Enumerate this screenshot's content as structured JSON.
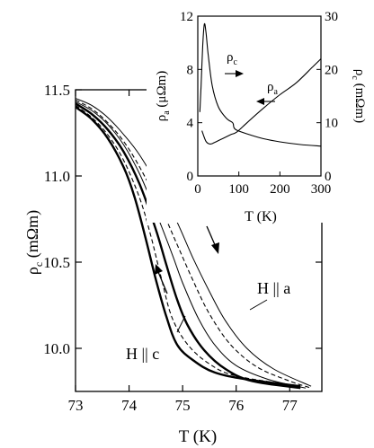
{
  "chart_data": [
    {
      "type": "line",
      "panel": "main",
      "xlabel": "T (K)",
      "ylabel": "ρc (mΩm)",
      "xlim": [
        73,
        77.6
      ],
      "ylim": [
        9.75,
        11.5
      ],
      "x_ticks": [
        "73",
        "74",
        "75",
        "76",
        "77"
      ],
      "y_ticks": [
        "10.0",
        "10.5",
        "11.0",
        "11.5"
      ],
      "annotations": [
        "H || a",
        "H || c"
      ],
      "arrows": [
        "cooling (down, right curves)",
        "warming (up, left curves)"
      ],
      "series": [
        {
          "style": "solid-thick",
          "points": [
            [
              73.0,
              11.4
            ],
            [
              73.3,
              11.33
            ],
            [
              73.6,
              11.22
            ],
            [
              73.9,
              11.05
            ],
            [
              74.1,
              10.88
            ],
            [
              74.3,
              10.65
            ],
            [
              74.5,
              10.4
            ],
            [
              74.7,
              10.18
            ],
            [
              74.9,
              10.02
            ],
            [
              75.2,
              9.93
            ],
            [
              75.6,
              9.86
            ],
            [
              76.2,
              9.82
            ],
            [
              77.2,
              9.78
            ]
          ]
        },
        {
          "style": "dashed",
          "points": [
            [
              73.0,
              11.41
            ],
            [
              73.3,
              11.34
            ],
            [
              73.6,
              11.24
            ],
            [
              73.9,
              11.09
            ],
            [
              74.2,
              10.87
            ],
            [
              74.4,
              10.66
            ],
            [
              74.6,
              10.41
            ],
            [
              74.8,
              10.18
            ],
            [
              75.1,
              10.02
            ],
            [
              75.5,
              9.91
            ],
            [
              76.0,
              9.84
            ],
            [
              77.2,
              9.78
            ]
          ]
        },
        {
          "style": "solid-thick",
          "points": [
            [
              73.0,
              11.42
            ],
            [
              73.3,
              11.36
            ],
            [
              73.6,
              11.27
            ],
            [
              73.9,
              11.14
            ],
            [
              74.2,
              10.95
            ],
            [
              74.5,
              10.69
            ],
            [
              74.7,
              10.48
            ],
            [
              74.9,
              10.28
            ],
            [
              75.1,
              10.13
            ],
            [
              75.4,
              9.99
            ],
            [
              75.8,
              9.88
            ],
            [
              76.3,
              9.81
            ],
            [
              77.2,
              9.77
            ]
          ]
        },
        {
          "style": "solid-thin",
          "points": [
            [
              73.0,
              11.43
            ],
            [
              73.3,
              11.38
            ],
            [
              73.6,
              11.3
            ],
            [
              73.9,
              11.18
            ],
            [
              74.2,
              11.01
            ],
            [
              74.5,
              10.79
            ],
            [
              74.8,
              10.55
            ],
            [
              75.0,
              10.38
            ],
            [
              75.3,
              10.17
            ],
            [
              75.6,
              10.02
            ],
            [
              76.0,
              9.9
            ],
            [
              76.6,
              9.82
            ],
            [
              77.3,
              9.77
            ]
          ]
        },
        {
          "style": "dashed",
          "points": [
            [
              73.0,
              11.44
            ],
            [
              73.3,
              11.39
            ],
            [
              73.6,
              11.31
            ],
            [
              73.9,
              11.2
            ],
            [
              74.2,
              11.05
            ],
            [
              74.6,
              10.81
            ],
            [
              74.9,
              10.6
            ],
            [
              75.2,
              10.39
            ],
            [
              75.5,
              10.2
            ],
            [
              75.9,
              10.02
            ],
            [
              76.4,
              9.89
            ],
            [
              77.0,
              9.81
            ],
            [
              77.4,
              9.77
            ]
          ]
        },
        {
          "style": "solid-thin",
          "points": [
            [
              73.0,
              11.45
            ],
            [
              73.3,
              11.41
            ],
            [
              73.6,
              11.34
            ],
            [
              73.9,
              11.24
            ],
            [
              74.2,
              11.12
            ],
            [
              74.6,
              10.91
            ],
            [
              74.9,
              10.73
            ],
            [
              75.2,
              10.52
            ],
            [
              75.5,
              10.33
            ],
            [
              75.8,
              10.16
            ],
            [
              76.2,
              10.0
            ],
            [
              76.7,
              9.88
            ],
            [
              77.4,
              9.78
            ]
          ]
        }
      ]
    },
    {
      "type": "line",
      "panel": "inset",
      "xlabel": "T (K)",
      "ylabel_left": "ρa (μΩm)",
      "ylabel_right": "ρc (mΩm)",
      "xlim": [
        0,
        300
      ],
      "ylim_left": [
        0,
        12
      ],
      "ylim_right": [
        0,
        30
      ],
      "x_ticks": [
        "0",
        "100",
        "200",
        "300"
      ],
      "y_ticks_left": [
        "0",
        "4",
        "8",
        "12"
      ],
      "y_ticks_right": [
        "0",
        "10",
        "20",
        "30"
      ],
      "annotations": [
        "ρc",
        "ρa"
      ],
      "series": [
        {
          "name": "ρc",
          "axis": "right",
          "points": [
            [
              5,
              12
            ],
            [
              8,
              17
            ],
            [
              12,
              24.5
            ],
            [
              16,
              28.5
            ],
            [
              20,
              27
            ],
            [
              25,
              23
            ],
            [
              35,
              17
            ],
            [
              50,
              13
            ],
            [
              70,
              10.8
            ],
            [
              85,
              10
            ],
            [
              88,
              9.1
            ],
            [
              95,
              8.6
            ],
            [
              120,
              7.9
            ],
            [
              160,
              7.0
            ],
            [
              200,
              6.4
            ],
            [
              250,
              5.9
            ],
            [
              300,
              5.6
            ]
          ]
        },
        {
          "name": "ρa",
          "axis": "left",
          "points": [
            [
              10,
              3.4
            ],
            [
              20,
              2.6
            ],
            [
              30,
              2.4
            ],
            [
              40,
              2.5
            ],
            [
              60,
              2.8
            ],
            [
              80,
              3.1
            ],
            [
              95,
              3.3
            ],
            [
              120,
              4.0
            ],
            [
              160,
              5.1
            ],
            [
              200,
              6.1
            ],
            [
              240,
              7.0
            ],
            [
              280,
              8.2
            ],
            [
              300,
              8.8
            ]
          ]
        }
      ]
    }
  ],
  "labels": {
    "main_xlabel": "T (K)",
    "main_ylabel": "ρ",
    "main_ylabel_sub": "c",
    "main_ylabel_unit": " (mΩm)",
    "ha": "H || a",
    "hc": "H || c",
    "inset_xlabel": "T (K)",
    "inset_yl": "ρ",
    "inset_yl_sub": "a",
    "inset_yl_unit": " (μΩm)",
    "inset_yr": "ρ",
    "inset_yr_sub": "c",
    "inset_yr_unit": " (mΩm)",
    "inset_rho_c": "ρ",
    "inset_rho_c_sub": "c",
    "inset_rho_a": "ρ",
    "inset_rho_a_sub": "a"
  }
}
